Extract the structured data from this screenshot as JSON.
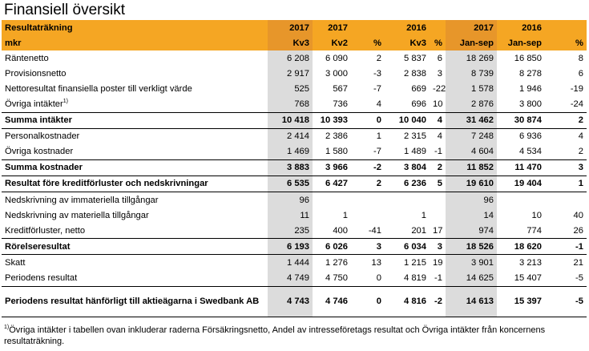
{
  "title": "Finansiell översikt",
  "header": {
    "row1": [
      "Resultaträkning",
      "2017",
      "2017",
      "",
      "2016",
      "",
      "2017",
      "2016",
      ""
    ],
    "row2": [
      "mkr",
      "Kv3",
      "Kv2",
      "%",
      "Kv3",
      "%",
      "Jan-sep",
      "Jan-sep",
      "%"
    ]
  },
  "rows": [
    {
      "label": "Räntenetto",
      "values": [
        "6 208",
        "6 090",
        "2",
        "5 837",
        "6",
        "18 269",
        "16 850",
        "8"
      ]
    },
    {
      "label": "Provisionsnetto",
      "values": [
        "2 917",
        "3 000",
        "-3",
        "2 838",
        "3",
        "8 739",
        "8 278",
        "6"
      ]
    },
    {
      "label": "Nettoresultat finansiella poster till verkligt värde",
      "values": [
        "525",
        "567",
        "-7",
        "669",
        "-22",
        "1 578",
        "1 946",
        "-19"
      ]
    },
    {
      "label": "Övriga intäkter",
      "sup": "1)",
      "values": [
        "768",
        "736",
        "4",
        "696",
        "10",
        "2 876",
        "3 800",
        "-24"
      ]
    },
    {
      "label": "Summa intäkter",
      "bold": true,
      "values": [
        "10 418",
        "10 393",
        "0",
        "10 040",
        "4",
        "31 462",
        "30 874",
        "2"
      ]
    },
    {
      "label": "Personalkostnader",
      "values": [
        "2 414",
        "2 386",
        "1",
        "2 315",
        "4",
        "7 248",
        "6 936",
        "4"
      ]
    },
    {
      "label": "Övriga kostnader",
      "values": [
        "1 469",
        "1 580",
        "-7",
        "1 489",
        "-1",
        "4 604",
        "4 534",
        "2"
      ]
    },
    {
      "label": "Summa kostnader",
      "bold": true,
      "values": [
        "3 883",
        "3 966",
        "-2",
        "3 804",
        "2",
        "11 852",
        "11 470",
        "3"
      ]
    },
    {
      "label": "Resultat före kreditförluster och nedskrivningar",
      "bold": true,
      "values": [
        "6 535",
        "6 427",
        "2",
        "6 236",
        "5",
        "19 610",
        "19 404",
        "1"
      ]
    },
    {
      "label": "Nedskrivning av immateriella tillgångar",
      "values": [
        "96",
        "",
        "",
        "",
        "",
        "96",
        "",
        ""
      ]
    },
    {
      "label": "Nedskrivning av materiella tillgångar",
      "values": [
        "11",
        "1",
        "",
        "1",
        "",
        "14",
        "10",
        "40"
      ]
    },
    {
      "label": "Kreditförluster, netto",
      "values": [
        "235",
        "400",
        "-41",
        "201",
        "17",
        "974",
        "774",
        "26"
      ]
    },
    {
      "label": "Rörelseresultat",
      "bold": true,
      "values": [
        "6 193",
        "6 026",
        "3",
        "6 034",
        "3",
        "18 526",
        "18 620",
        "-1"
      ]
    },
    {
      "label": "Skatt",
      "values": [
        "1 444",
        "1 276",
        "13",
        "1 215",
        "19",
        "3 901",
        "3 213",
        "21"
      ]
    },
    {
      "label": "Periodens resultat",
      "values": [
        "4 749",
        "4 750",
        "0",
        "4 819",
        "-1",
        "14 625",
        "15 407",
        "-5"
      ]
    },
    {
      "label": "Periodens resultat hänförligt till aktieägarna i Swedbank AB",
      "bold": true,
      "tall": true,
      "values": [
        "4 743",
        "4 746",
        "0",
        "4 816",
        "-2",
        "14 613",
        "15 397",
        "-5"
      ]
    }
  ],
  "footnote": {
    "sup": "1)",
    "text": "Övriga intäkter i tabellen ovan inkluderar raderna Försäkringsnetto, Andel av intresseföretags resultat och Övriga intäkter från koncernens resultaträkning."
  }
}
